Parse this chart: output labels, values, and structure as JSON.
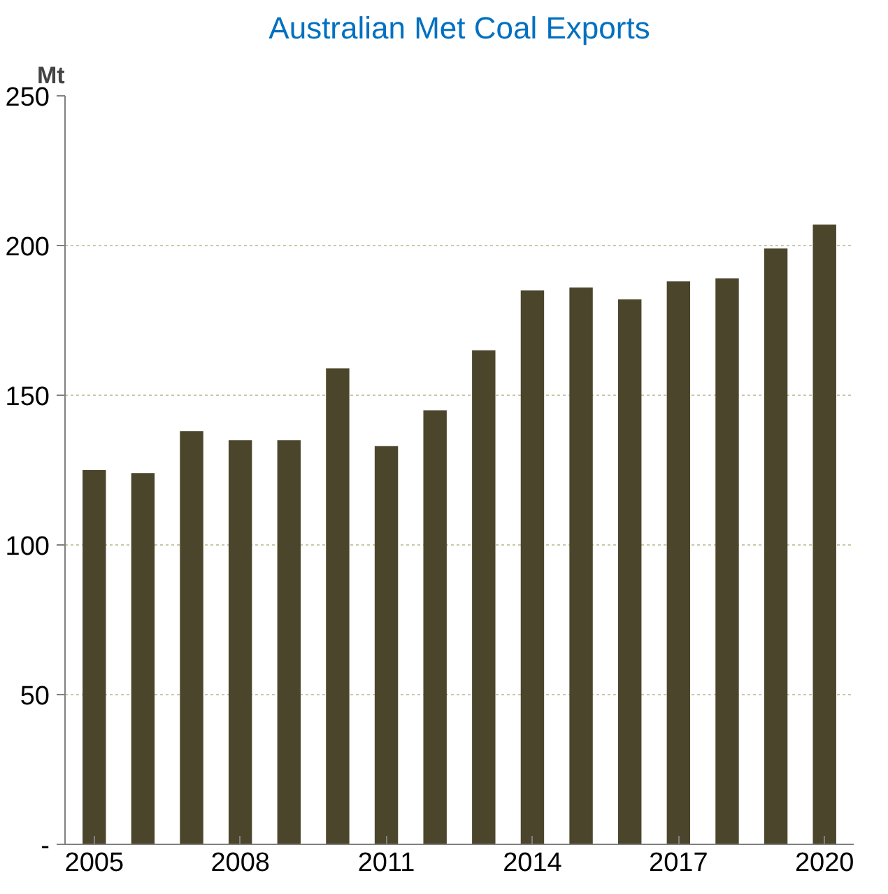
{
  "chart_data": {
    "type": "bar",
    "title": "Australian Met Coal Exports",
    "ylabel": "Mt",
    "categories": [
      "2005",
      null,
      null,
      "2008",
      null,
      null,
      "2011",
      null,
      null,
      "2014",
      null,
      null,
      "2017",
      null,
      null,
      "2020"
    ],
    "values": [
      125,
      124,
      138,
      135,
      135,
      159,
      133,
      145,
      165,
      185,
      186,
      182,
      188,
      189,
      199,
      207
    ],
    "color": "#4b452b",
    "ylim": [
      0,
      250
    ],
    "yticks": [
      {
        "value": 0,
        "label": "-"
      },
      50,
      100,
      150,
      200,
      250
    ],
    "grid": "y"
  }
}
